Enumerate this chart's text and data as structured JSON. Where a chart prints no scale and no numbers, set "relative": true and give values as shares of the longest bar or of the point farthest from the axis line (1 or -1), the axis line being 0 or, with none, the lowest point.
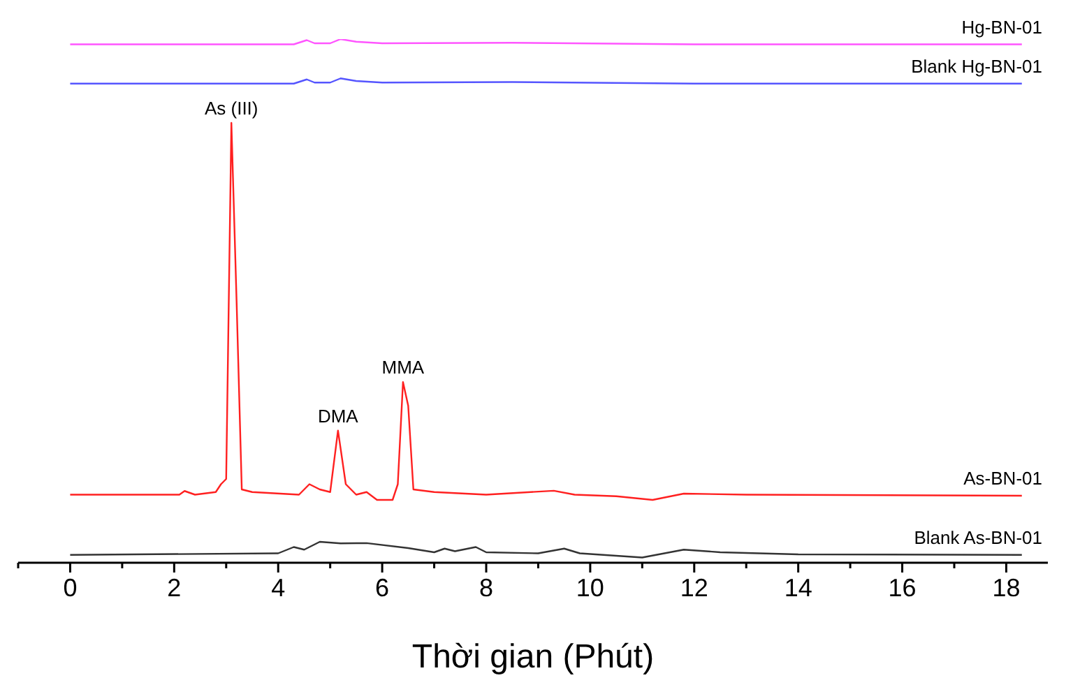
{
  "chart_data": {
    "type": "line",
    "relative": true,
    "xlabel": "Thời gian (Phút)",
    "xlim": [
      -1,
      18.8
    ],
    "xticks": [
      {
        "value": -1,
        "label": null
      },
      0,
      {
        "value": 1,
        "label": null
      },
      2,
      {
        "value": 3,
        "label": null
      },
      4,
      {
        "value": 5,
        "label": null
      },
      6,
      {
        "value": 7,
        "label": null
      },
      8,
      {
        "value": 9,
        "label": null
      },
      10,
      {
        "value": 11,
        "label": null
      },
      12,
      {
        "value": 13,
        "label": null
      },
      14,
      {
        "value": 15,
        "label": null
      },
      16,
      {
        "value": 17,
        "label": null
      },
      18
    ],
    "legend": false,
    "grid": false,
    "tick_labels": "x",
    "annotations": [
      {
        "text": "As (III)",
        "x": 3.1,
        "y": 0.84
      },
      {
        "text": "DMA",
        "x": 5.15,
        "y": 0.2525
      },
      {
        "text": "MMA",
        "x": 6.4,
        "y": 0.345
      }
    ],
    "series": [
      {
        "name": "Hg-BN-01",
        "color": "#ff55ff",
        "x": [
          0,
          4.3,
          4.55,
          4.7,
          5.0,
          5.2,
          5.5,
          6,
          8.5,
          12,
          18.3
        ],
        "values": [
          0.99,
          0.99,
          0.998,
          0.992,
          0.992,
          1.0,
          0.995,
          0.992,
          0.993,
          0.99,
          0.99
        ]
      },
      {
        "name": "Blank Hg-BN-01",
        "color": "#5555ff",
        "x": [
          0,
          4.3,
          4.55,
          4.7,
          5.0,
          5.2,
          5.5,
          6,
          8.5,
          12,
          18.3
        ],
        "values": [
          0.915,
          0.915,
          0.923,
          0.917,
          0.917,
          0.925,
          0.92,
          0.917,
          0.918,
          0.915,
          0.915
        ]
      },
      {
        "name": "As-BN-01",
        "color": "#ff2020",
        "x": [
          0,
          2.1,
          2.2,
          2.4,
          2.8,
          2.9,
          3.0,
          3.1,
          3.2,
          3.3,
          3.5,
          4.4,
          4.6,
          4.8,
          5.0,
          5.15,
          5.3,
          5.5,
          5.7,
          5.9,
          6.2,
          6.3,
          6.4,
          6.5,
          6.6,
          7.0,
          8.0,
          9.3,
          9.7,
          10.5,
          11.2,
          11.8,
          13,
          18.3
        ],
        "values": [
          0.13,
          0.13,
          0.137,
          0.13,
          0.135,
          0.15,
          0.16,
          0.84,
          0.5,
          0.14,
          0.135,
          0.13,
          0.15,
          0.14,
          0.135,
          0.2525,
          0.15,
          0.13,
          0.135,
          0.12,
          0.12,
          0.15,
          0.345,
          0.3,
          0.14,
          0.135,
          0.13,
          0.1375,
          0.13,
          0.127,
          0.12,
          0.132,
          0.13,
          0.128
        ]
      },
      {
        "name": "Blank As-BN-01",
        "color": "#333333",
        "x": [
          0,
          4.0,
          4.3,
          4.5,
          4.8,
          5.2,
          5.7,
          6.5,
          7.0,
          7.2,
          7.4,
          7.8,
          8.0,
          9.0,
          9.5,
          9.8,
          11.0,
          11.8,
          12.5,
          14,
          18.3
        ],
        "values": [
          0.015,
          0.018,
          0.03,
          0.025,
          0.04,
          0.037,
          0.0375,
          0.028,
          0.02,
          0.027,
          0.022,
          0.03,
          0.02,
          0.018,
          0.027,
          0.018,
          0.01,
          0.025,
          0.02,
          0.016,
          0.015
        ]
      }
    ]
  }
}
